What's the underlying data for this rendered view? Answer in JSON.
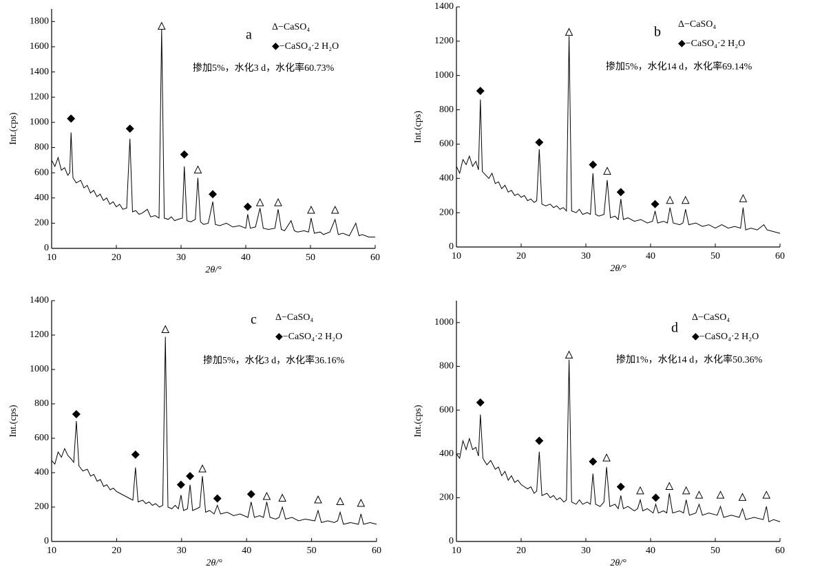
{
  "chart_data": [
    {
      "type": "line",
      "label": "a",
      "annotation": "掺加5%，水化3 d，水化率60.73%",
      "legend": [
        "Δ−CaSO₄",
        "◆−CaSO₄·2 H₂O"
      ],
      "xlabel": "2θ/°",
      "ylabel": "Int.(cps)",
      "color": "#000000",
      "xlim": [
        10,
        60
      ],
      "xticks": [
        10,
        20,
        30,
        40,
        50,
        60
      ],
      "ylim": [
        0,
        1900
      ],
      "yticks": [
        0,
        200,
        400,
        600,
        800,
        1000,
        1200,
        1400,
        1600,
        1800
      ],
      "x": [
        10,
        10.5,
        11,
        11.5,
        12,
        12.5,
        12.8,
        13,
        13.3,
        13.8,
        14.5,
        15,
        15.5,
        16,
        16.5,
        17,
        17.5,
        18,
        18.5,
        19,
        19.5,
        20,
        20.5,
        21,
        21.6,
        22.1,
        22.5,
        23,
        23.5,
        24,
        24.8,
        25.3,
        26,
        26.6,
        27,
        27.4,
        28,
        28.5,
        29,
        29.5,
        30.2,
        30.5,
        30.9,
        31.5,
        32.2,
        32.6,
        33,
        33.5,
        34.2,
        34.9,
        35.3,
        36,
        37,
        38,
        39,
        40,
        40.3,
        40.7,
        41.5,
        42.2,
        42.7,
        43.5,
        44.5,
        45,
        45.5,
        46,
        47,
        47.5,
        48,
        49,
        49.7,
        50.1,
        50.6,
        51.5,
        52,
        53,
        53.8,
        54.3,
        55,
        56,
        57,
        57.5,
        58,
        59,
        60
      ],
      "values": [
        700,
        650,
        720,
        620,
        640,
        580,
        600,
        920,
        560,
        520,
        540,
        480,
        500,
        440,
        460,
        410,
        430,
        380,
        400,
        350,
        370,
        330,
        350,
        310,
        320,
        870,
        290,
        300,
        270,
        280,
        310,
        250,
        260,
        240,
        1740,
        240,
        230,
        250,
        220,
        230,
        240,
        650,
        220,
        210,
        230,
        560,
        210,
        190,
        200,
        370,
        190,
        180,
        200,
        170,
        180,
        160,
        270,
        160,
        170,
        320,
        160,
        150,
        160,
        310,
        150,
        140,
        220,
        140,
        130,
        140,
        130,
        240,
        120,
        130,
        110,
        130,
        230,
        110,
        120,
        100,
        200,
        100,
        110,
        90,
        90
      ],
      "markers": [
        {
          "x": 13,
          "y": 1030,
          "symbol": "diamond"
        },
        {
          "x": 22.1,
          "y": 950,
          "symbol": "diamond"
        },
        {
          "x": 27,
          "y": 1760,
          "symbol": "triangle"
        },
        {
          "x": 30.5,
          "y": 745,
          "symbol": "diamond"
        },
        {
          "x": 32.6,
          "y": 620,
          "symbol": "triangle"
        },
        {
          "x": 34.9,
          "y": 430,
          "symbol": "diamond"
        },
        {
          "x": 40.3,
          "y": 330,
          "symbol": "diamond"
        },
        {
          "x": 42.2,
          "y": 360,
          "symbol": "triangle"
        },
        {
          "x": 45,
          "y": 360,
          "symbol": "triangle"
        },
        {
          "x": 50.1,
          "y": 300,
          "symbol": "triangle"
        },
        {
          "x": 53.8,
          "y": 300,
          "symbol": "triangle"
        }
      ]
    },
    {
      "type": "line",
      "label": "b",
      "annotation": "掺加5%，水化14 d，水化率69.14%",
      "legend": [
        "Δ−CaSO₄",
        "◆−CaSO₄·2 H₂O"
      ],
      "xlabel": "2θ/°",
      "ylabel": "Int.(cps)",
      "color": "#000000",
      "xlim": [
        10,
        60
      ],
      "xticks": [
        10,
        20,
        30,
        40,
        50,
        60
      ],
      "ylim": [
        0,
        1400
      ],
      "yticks": [
        0,
        200,
        400,
        600,
        800,
        1000,
        1200,
        1400
      ],
      "x": [
        10,
        10.5,
        11,
        11.5,
        12,
        12.5,
        13,
        13.4,
        13.7,
        14,
        14.5,
        15,
        15.5,
        16,
        16.5,
        17,
        17.5,
        18,
        18.5,
        19,
        19.5,
        20,
        20.5,
        21,
        21.5,
        22,
        22.4,
        22.8,
        23.2,
        23.8,
        24.5,
        25,
        25.5,
        26,
        26.5,
        27,
        27.4,
        27.8,
        28.5,
        29,
        29.5,
        30.2,
        30.7,
        31.1,
        31.5,
        32,
        32.8,
        33.3,
        33.8,
        34.5,
        35,
        35.4,
        35.8,
        36.5,
        37.5,
        38.5,
        39.5,
        40.3,
        40.7,
        41.1,
        42,
        42.6,
        43,
        43.5,
        44.5,
        45,
        45.4,
        45.9,
        47,
        48,
        49,
        50,
        51,
        52,
        53,
        53.9,
        54.3,
        54.7,
        55.5,
        56.5,
        57.5,
        58,
        59,
        60
      ],
      "values": [
        470,
        430,
        510,
        480,
        530,
        470,
        500,
        450,
        860,
        440,
        420,
        400,
        430,
        370,
        380,
        340,
        360,
        320,
        330,
        300,
        310,
        290,
        300,
        270,
        280,
        260,
        270,
        570,
        250,
        240,
        250,
        230,
        240,
        220,
        230,
        210,
        1230,
        210,
        200,
        220,
        190,
        200,
        190,
        430,
        190,
        180,
        190,
        390,
        170,
        180,
        160,
        280,
        160,
        170,
        150,
        160,
        140,
        150,
        210,
        140,
        150,
        140,
        230,
        140,
        130,
        140,
        220,
        130,
        140,
        120,
        130,
        110,
        130,
        110,
        120,
        110,
        230,
        100,
        110,
        100,
        130,
        100,
        90,
        80
      ],
      "markers": [
        {
          "x": 13.7,
          "y": 910,
          "symbol": "diamond"
        },
        {
          "x": 22.8,
          "y": 610,
          "symbol": "diamond"
        },
        {
          "x": 27.4,
          "y": 1250,
          "symbol": "triangle"
        },
        {
          "x": 31.1,
          "y": 480,
          "symbol": "diamond"
        },
        {
          "x": 33.3,
          "y": 440,
          "symbol": "triangle"
        },
        {
          "x": 35.4,
          "y": 320,
          "symbol": "diamond"
        },
        {
          "x": 40.7,
          "y": 250,
          "symbol": "diamond"
        },
        {
          "x": 43,
          "y": 270,
          "symbol": "triangle"
        },
        {
          "x": 45.4,
          "y": 270,
          "symbol": "triangle"
        },
        {
          "x": 54.3,
          "y": 280,
          "symbol": "triangle"
        }
      ]
    },
    {
      "type": "line",
      "label": "c",
      "annotation": "掺加5%，水化3 d，水化率36.16%",
      "legend": [
        "Δ−CaSO₄",
        "◆−CaSO₄·2 H₂O"
      ],
      "xlabel": "2θ/°",
      "ylabel": "Int.(cps)",
      "color": "#000000",
      "xlim": [
        10,
        60
      ],
      "xticks": [
        10,
        20,
        30,
        40,
        50,
        60
      ],
      "ylim": [
        0,
        1400
      ],
      "yticks": [
        0,
        200,
        400,
        600,
        800,
        1000,
        1200,
        1400
      ],
      "x": [
        10,
        10.5,
        11,
        11.5,
        12,
        12.5,
        13,
        13.4,
        13.8,
        14.2,
        14.8,
        15.5,
        16,
        16.5,
        17,
        17.5,
        18,
        18.5,
        19,
        19.5,
        20,
        20.5,
        21,
        21.5,
        22,
        22.5,
        22.9,
        23.3,
        24,
        24.5,
        25,
        25.5,
        26,
        26.6,
        27.1,
        27.5,
        27.9,
        28.5,
        29,
        29.5,
        29.9,
        30.3,
        30.9,
        31.3,
        31.7,
        32.3,
        32.8,
        33.2,
        33.7,
        34.3,
        35,
        35.5,
        36,
        37,
        38,
        39,
        40.2,
        40.7,
        41.2,
        42,
        42.6,
        43.1,
        43.6,
        44.5,
        45,
        45.5,
        46,
        47,
        48,
        49,
        50.5,
        51,
        51.5,
        52.5,
        53.5,
        54,
        54.4,
        54.9,
        56,
        57.2,
        57.6,
        58,
        59,
        60
      ],
      "values": [
        470,
        450,
        520,
        490,
        540,
        500,
        480,
        460,
        700,
        440,
        410,
        420,
        380,
        390,
        350,
        360,
        320,
        330,
        300,
        310,
        290,
        280,
        270,
        260,
        250,
        240,
        430,
        230,
        240,
        220,
        230,
        210,
        220,
        200,
        210,
        1190,
        200,
        190,
        210,
        190,
        270,
        180,
        190,
        330,
        180,
        190,
        200,
        380,
        170,
        180,
        160,
        210,
        160,
        170,
        150,
        160,
        140,
        230,
        140,
        150,
        140,
        230,
        140,
        130,
        140,
        200,
        130,
        140,
        120,
        130,
        120,
        180,
        110,
        120,
        110,
        120,
        170,
        100,
        110,
        100,
        160,
        100,
        110,
        100
      ],
      "markers": [
        {
          "x": 13.8,
          "y": 740,
          "symbol": "diamond"
        },
        {
          "x": 22.9,
          "y": 505,
          "symbol": "diamond"
        },
        {
          "x": 27.5,
          "y": 1230,
          "symbol": "triangle"
        },
        {
          "x": 29.9,
          "y": 330,
          "symbol": "diamond"
        },
        {
          "x": 31.3,
          "y": 380,
          "symbol": "diamond"
        },
        {
          "x": 33.2,
          "y": 420,
          "symbol": "triangle"
        },
        {
          "x": 35.5,
          "y": 250,
          "symbol": "diamond"
        },
        {
          "x": 40.7,
          "y": 275,
          "symbol": "diamond"
        },
        {
          "x": 43.1,
          "y": 260,
          "symbol": "triangle"
        },
        {
          "x": 45.5,
          "y": 250,
          "symbol": "triangle"
        },
        {
          "x": 51,
          "y": 240,
          "symbol": "triangle"
        },
        {
          "x": 54.4,
          "y": 230,
          "symbol": "triangle"
        },
        {
          "x": 57.6,
          "y": 220,
          "symbol": "triangle"
        }
      ]
    },
    {
      "type": "line",
      "label": "d",
      "annotation": "掺加1%，水化14 d，水化率50.36%",
      "legend": [
        "Δ−CaSO₄",
        "◆−CaSO₄·2 H₂O"
      ],
      "xlabel": "2θ/°",
      "ylabel": "Int.(cps)",
      "color": "#000000",
      "xlim": [
        10,
        60
      ],
      "xticks": [
        10,
        20,
        30,
        40,
        50,
        60
      ],
      "ylim": [
        0,
        1100
      ],
      "yticks": [
        0,
        200,
        400,
        600,
        800,
        1000
      ],
      "x": [
        10,
        10.5,
        11,
        11.5,
        12,
        12.5,
        13,
        13.4,
        13.7,
        14.1,
        14.7,
        15.3,
        16,
        16.5,
        17,
        17.5,
        18,
        18.5,
        19,
        19.5,
        20,
        20.5,
        21,
        21.5,
        22,
        22.4,
        22.8,
        23.2,
        24,
        24.5,
        25,
        25.5,
        26,
        26.6,
        27,
        27.4,
        27.8,
        28.5,
        29,
        29.5,
        30.2,
        30.7,
        31.1,
        31.5,
        32.2,
        32.8,
        33.2,
        33.7,
        34.5,
        35,
        35.4,
        35.8,
        36.5,
        37.5,
        38,
        38.4,
        38.8,
        39.5,
        40.4,
        40.8,
        41.2,
        42,
        42.5,
        42.9,
        43.4,
        44.5,
        45.1,
        45.5,
        46,
        47,
        47.5,
        48,
        49,
        50.3,
        50.8,
        51.3,
        52.5,
        53.7,
        54.2,
        54.7,
        56,
        57.4,
        57.9,
        58.3,
        59,
        60
      ],
      "values": [
        400,
        380,
        460,
        420,
        470,
        420,
        430,
        390,
        580,
        380,
        350,
        370,
        330,
        340,
        300,
        320,
        280,
        300,
        270,
        280,
        260,
        250,
        240,
        250,
        220,
        230,
        410,
        210,
        220,
        200,
        210,
        190,
        200,
        180,
        190,
        830,
        180,
        170,
        190,
        170,
        180,
        170,
        310,
        170,
        160,
        180,
        340,
        160,
        170,
        150,
        210,
        150,
        160,
        140,
        150,
        190,
        140,
        150,
        130,
        170,
        130,
        140,
        130,
        220,
        130,
        140,
        130,
        190,
        120,
        130,
        170,
        120,
        130,
        120,
        160,
        110,
        120,
        110,
        150,
        100,
        110,
        100,
        160,
        90,
        100,
        90
      ],
      "markers": [
        {
          "x": 13.7,
          "y": 635,
          "symbol": "diamond"
        },
        {
          "x": 22.8,
          "y": 460,
          "symbol": "diamond"
        },
        {
          "x": 27.4,
          "y": 850,
          "symbol": "triangle"
        },
        {
          "x": 31.1,
          "y": 365,
          "symbol": "diamond"
        },
        {
          "x": 33.2,
          "y": 380,
          "symbol": "triangle"
        },
        {
          "x": 35.4,
          "y": 250,
          "symbol": "diamond"
        },
        {
          "x": 38.4,
          "y": 230,
          "symbol": "triangle"
        },
        {
          "x": 40.8,
          "y": 200,
          "symbol": "diamond"
        },
        {
          "x": 42.9,
          "y": 250,
          "symbol": "triangle"
        },
        {
          "x": 45.5,
          "y": 230,
          "symbol": "triangle"
        },
        {
          "x": 47.5,
          "y": 210,
          "symbol": "triangle"
        },
        {
          "x": 50.8,
          "y": 210,
          "symbol": "triangle"
        },
        {
          "x": 54.2,
          "y": 200,
          "symbol": "triangle"
        },
        {
          "x": 57.9,
          "y": 210,
          "symbol": "triangle"
        }
      ]
    }
  ]
}
